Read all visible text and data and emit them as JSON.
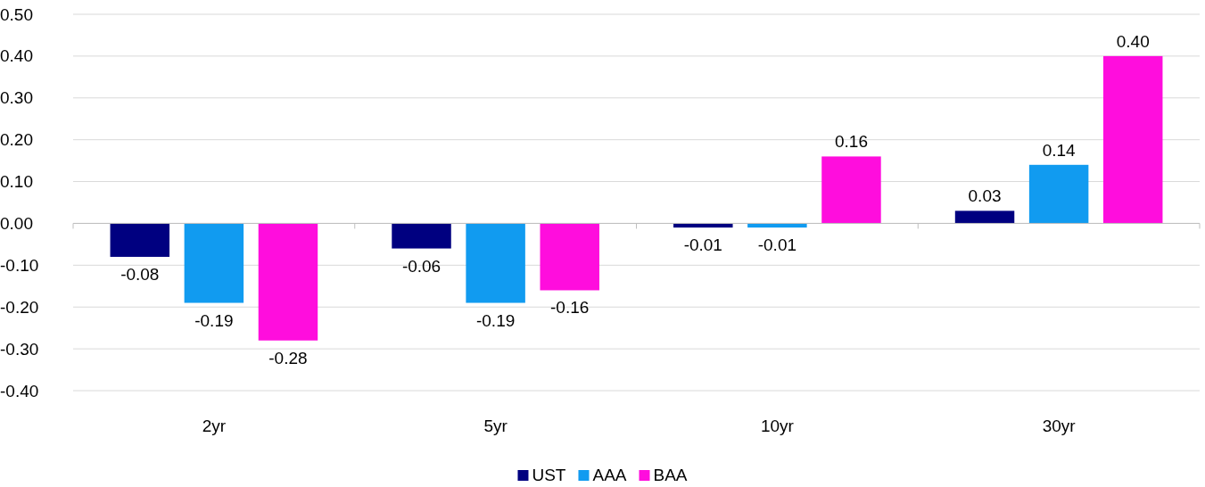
{
  "chart_data": {
    "type": "bar",
    "categories": [
      "2yr",
      "5yr",
      "10yr",
      "30yr"
    ],
    "series": [
      {
        "name": "UST",
        "color": "#000080",
        "values": [
          -0.08,
          -0.06,
          -0.01,
          0.03
        ],
        "value_labels": [
          "-0.08",
          "-0.06",
          "-0.01",
          "0.03"
        ]
      },
      {
        "name": "AAA",
        "color": "#119bf0",
        "values": [
          -0.19,
          -0.19,
          -0.01,
          0.14
        ],
        "value_labels": [
          "-0.19",
          "-0.19",
          "-0.01",
          "0.14"
        ]
      },
      {
        "name": "BAA",
        "color": "#ff0ddd",
        "values": [
          -0.28,
          -0.16,
          0.16,
          0.4
        ],
        "value_labels": [
          "-0.28",
          "-0.16",
          "0.16",
          "0.40"
        ]
      }
    ],
    "ylim": [
      -0.4,
      0.5
    ],
    "yticks": [
      {
        "value": -0.4,
        "label": "-0.40"
      },
      {
        "value": -0.3,
        "label": "-0.30"
      },
      {
        "value": -0.2,
        "label": "-0.20"
      },
      {
        "value": -0.1,
        "label": "-0.10"
      },
      {
        "value": 0,
        "label": "0.00"
      },
      {
        "value": 0.1,
        "label": "0.10"
      },
      {
        "value": 0.2,
        "label": "0.20"
      },
      {
        "value": 0.3,
        "label": "0.30"
      },
      {
        "value": 0.4,
        "label": "0.40"
      },
      {
        "value": 0.5,
        "label": "0.50"
      }
    ],
    "grid": "y",
    "legend": "bottom"
  }
}
